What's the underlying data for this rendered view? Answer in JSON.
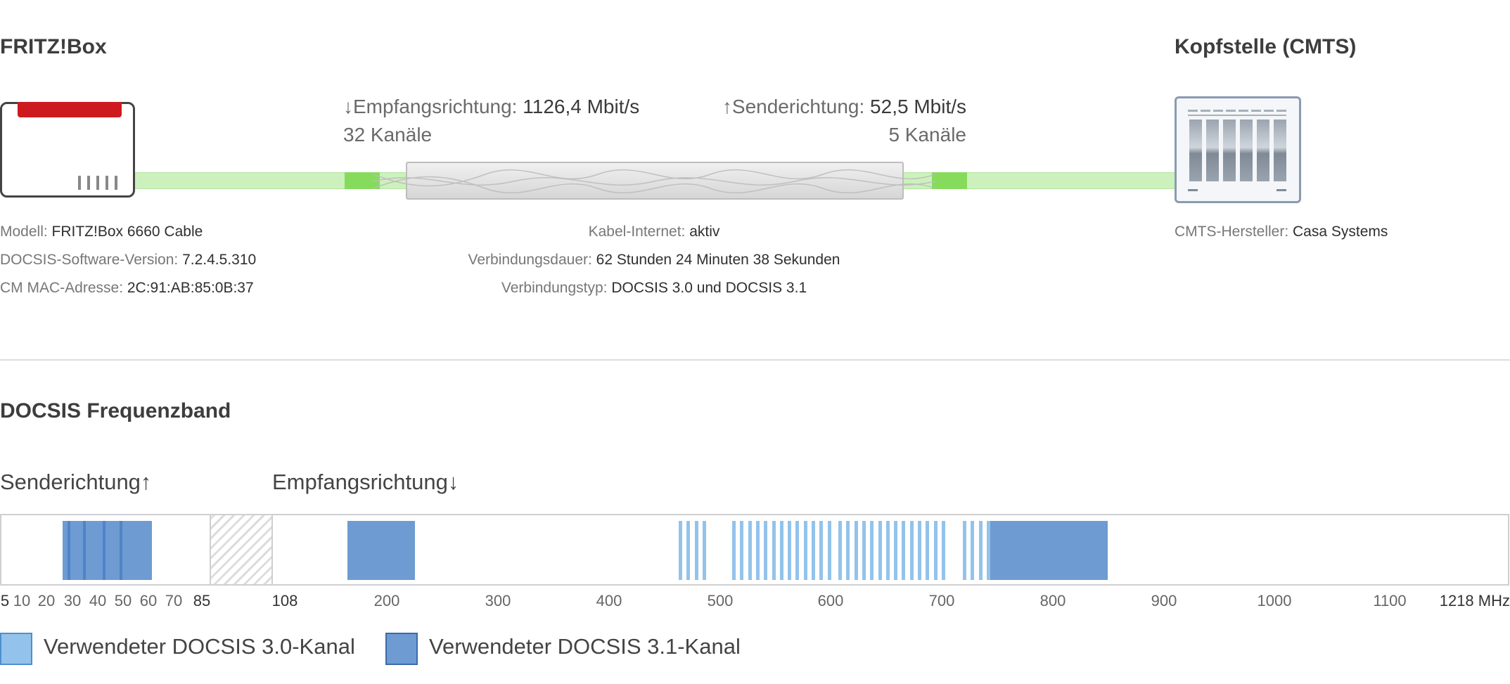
{
  "fritzbox": {
    "title": "FRITZ!Box",
    "model_label": "Modell: ",
    "model_value": "FRITZ!Box 6660 Cable",
    "sw_label": "DOCSIS-Software-Version: ",
    "sw_value": "7.2.4.5.310",
    "mac_label": "CM MAC-Adresse: ",
    "mac_value": "2C:91:AB:85:0B:37"
  },
  "cmts": {
    "title": "Kopfstelle (CMTS)",
    "vendor_label": "CMTS-Hersteller: ",
    "vendor_value": "Casa Systems"
  },
  "downstream": {
    "label": "↓Empfangsrichtung: ",
    "rate": "1126,4 Mbit/s",
    "channels": "32 Kanäle"
  },
  "upstream": {
    "label": "↑Senderichtung: ",
    "rate": "52,5 Mbit/s",
    "channels": "5 Kanäle"
  },
  "connection": {
    "cable_label": "Kabel-Internet: ",
    "cable_value": "aktiv",
    "duration_label": "Verbindungsdauer: ",
    "duration_value": "62 Stunden 24 Minuten 38 Sekunden",
    "type_label": "Verbindungstyp: ",
    "type_value": "DOCSIS 3.0 und DOCSIS 3.1"
  },
  "band": {
    "title": "DOCSIS Frequenzband",
    "send_label": "Senderichtung↑",
    "recv_label": "Empfangsrichtung↓",
    "send_ticks": [
      "5",
      "10",
      "20",
      "30",
      "40",
      "50",
      "60",
      "70",
      "85"
    ],
    "recv_ticks": [
      "108",
      "200",
      "300",
      "400",
      "500",
      "600",
      "700",
      "800",
      "900",
      "1000",
      "1100",
      "1218 MHz"
    ]
  },
  "legend": {
    "docsis30": "Verwendeter DOCSIS 3.0-Kanal",
    "docsis31": "Verwendeter DOCSIS 3.1-Kanal"
  },
  "colors": {
    "docsis30": "#93c3ea",
    "docsis31": "#6e9bd2",
    "cable": "#c9f0b6",
    "brand_red": "#cc1a1f"
  }
}
